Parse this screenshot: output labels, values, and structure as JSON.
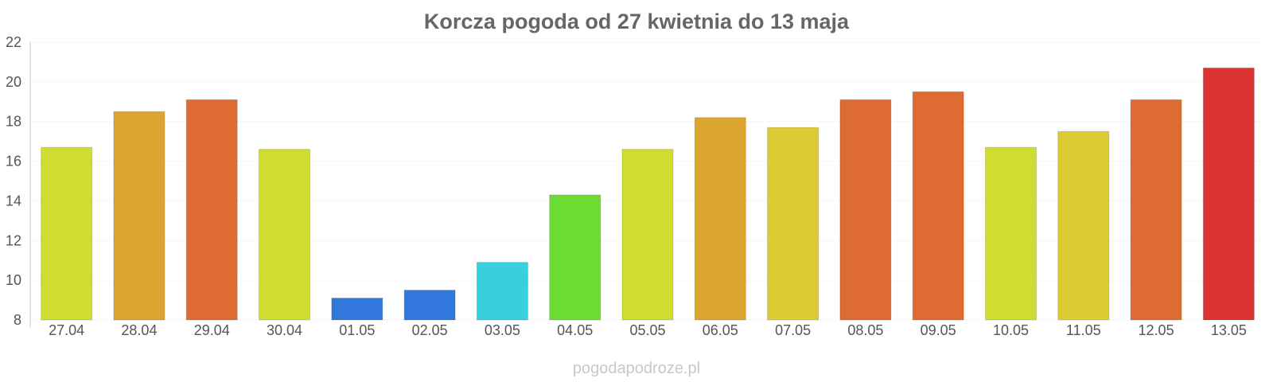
{
  "chart_data": {
    "type": "bar",
    "title": "Korcza pogoda od 27 kwietnia do 13 maja",
    "xlabel": "",
    "ylabel": "",
    "ylim": [
      8,
      22
    ],
    "yticks": [
      8,
      10,
      12,
      14,
      16,
      18,
      20,
      22
    ],
    "grid": true,
    "categories": [
      "27.04",
      "28.04",
      "29.04",
      "30.04",
      "01.05",
      "02.05",
      "03.05",
      "04.05",
      "05.05",
      "06.05",
      "07.05",
      "08.05",
      "09.05",
      "10.05",
      "11.05",
      "12.05",
      "13.05"
    ],
    "values": [
      16.7,
      18.5,
      19.1,
      16.6,
      9.1,
      9.5,
      10.9,
      14.3,
      16.6,
      18.2,
      17.7,
      19.1,
      19.5,
      16.7,
      17.5,
      19.1,
      20.7
    ],
    "colors": [
      "#d0dc32",
      "#dca532",
      "#dd6b32",
      "#d0dc32",
      "#3278dc",
      "#3278dc",
      "#37d0dc",
      "#6ddc32",
      "#d0dc32",
      "#dca532",
      "#dccb32",
      "#dd6b32",
      "#dd6b32",
      "#d0dc32",
      "#dccb32",
      "#dd6b32",
      "#dc3232"
    ]
  },
  "watermark": "pogodapodroze.pl"
}
